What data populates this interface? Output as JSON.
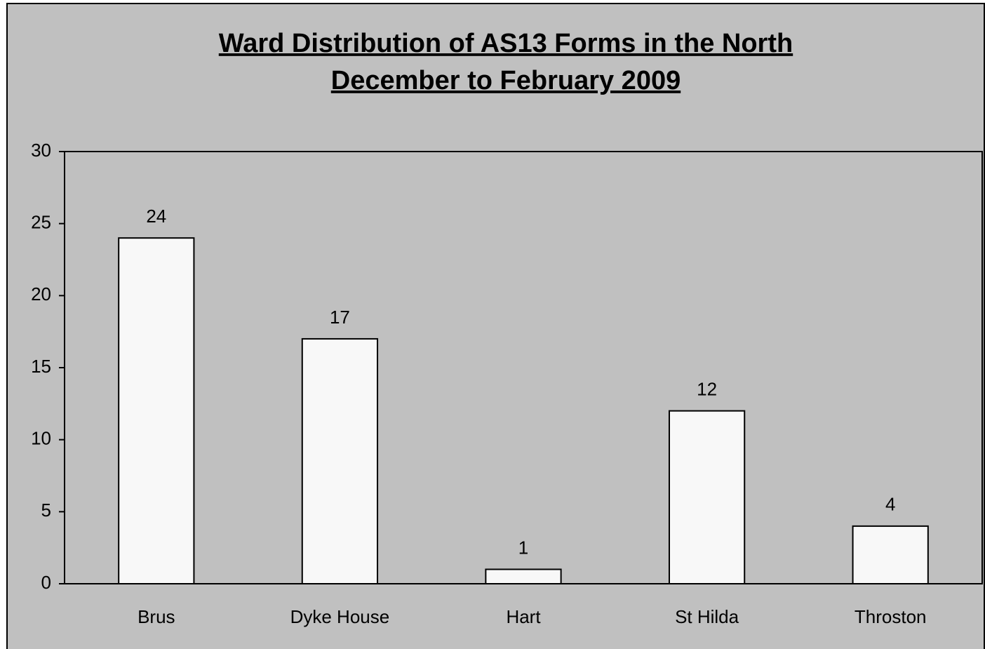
{
  "chart_data": {
    "type": "bar",
    "title": "Ward Distribution of AS13 Forms in the North",
    "subtitle": "December to February 2009",
    "categories": [
      "Brus",
      "Dyke House",
      "Hart",
      "St Hilda",
      "Throston"
    ],
    "values": [
      24,
      17,
      1,
      12,
      4
    ],
    "color": "#f8f8f8",
    "ylim": [
      0,
      30
    ],
    "yticks": [
      0,
      5,
      10,
      15,
      20,
      25,
      30
    ],
    "grid": false
  }
}
